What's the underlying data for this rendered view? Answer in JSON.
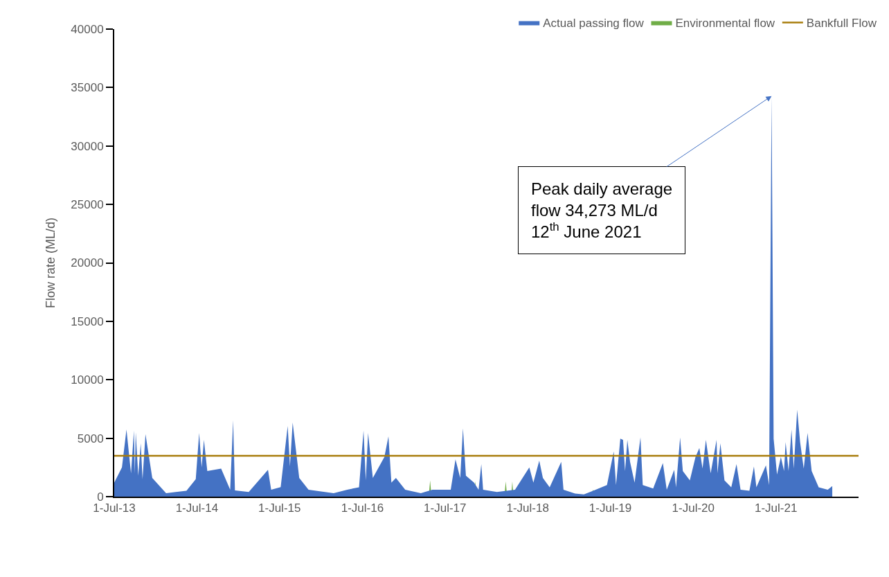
{
  "chart_data": {
    "type": "area",
    "ylabel": "Flow rate (ML/d)",
    "xlim": [
      "2013-07-01",
      "2022-07-01"
    ],
    "xticks": [
      {
        "value": "2013-07-01",
        "label": "1-Jul-13"
      },
      {
        "value": "2014-07-01",
        "label": "1-Jul-14"
      },
      {
        "value": "2015-07-01",
        "label": "1-Jul-15"
      },
      {
        "value": "2016-07-01",
        "label": "1-Jul-16"
      },
      {
        "value": "2017-07-01",
        "label": "1-Jul-17"
      },
      {
        "value": "2018-07-01",
        "label": "1-Jul-18"
      },
      {
        "value": "2019-07-01",
        "label": "1-Jul-19"
      },
      {
        "value": "2020-07-01",
        "label": "1-Jul-20"
      },
      {
        "value": "2021-07-01",
        "label": "1-Jul-21"
      }
    ],
    "ylim": [
      0,
      40000
    ],
    "yticks": [
      0,
      5000,
      10000,
      15000,
      20000,
      25000,
      30000,
      35000,
      40000
    ],
    "legend": "top right",
    "series": [
      {
        "name": "Actual passing flow",
        "color": "#4472c4",
        "x": [
          "2013-07-01",
          "2013-08-04",
          "2013-08-24",
          "2013-09-13",
          "2013-09-26",
          "2013-09-30",
          "2013-10-04",
          "2013-10-15",
          "2013-10-26",
          "2013-11-03",
          "2013-11-16",
          "2013-12-16",
          "2014-02-15",
          "2014-05-16",
          "2014-06-26",
          "2014-07-11",
          "2014-07-22",
          "2014-08-01",
          "2014-08-16",
          "2014-10-16",
          "2014-11-25",
          "2014-12-08",
          "2014-12-16",
          "2015-02-15",
          "2015-05-11",
          "2015-05-25",
          "2015-07-06",
          "2015-08-06",
          "2015-08-16",
          "2015-08-28",
          "2015-09-26",
          "2015-11-06",
          "2016-02-25",
          "2016-04-25",
          "2016-06-16",
          "2016-07-06",
          "2016-07-16",
          "2016-07-26",
          "2016-08-16",
          "2016-10-06",
          "2016-10-24",
          "2016-11-06",
          "2016-11-26",
          "2017-01-06",
          "2017-03-16",
          "2017-05-06",
          "2017-07-26",
          "2017-08-16",
          "2017-09-06",
          "2017-09-18",
          "2017-10-01",
          "2017-11-06",
          "2017-11-26",
          "2017-12-08",
          "2017-12-16",
          "2018-02-15",
          "2018-05-06",
          "2018-07-08",
          "2018-07-26",
          "2018-08-21",
          "2018-09-06",
          "2018-10-06",
          "2018-11-26",
          "2018-12-06",
          "2019-01-26",
          "2019-03-06",
          "2019-04-16",
          "2019-06-16",
          "2019-07-16",
          "2019-07-26",
          "2019-08-14",
          "2019-08-26",
          "2019-09-04",
          "2019-09-14",
          "2019-09-26",
          "2019-10-16",
          "2019-11-11",
          "2019-11-21",
          "2020-01-06",
          "2020-02-18",
          "2020-03-06",
          "2020-04-08",
          "2020-04-16",
          "2020-05-04",
          "2020-05-16",
          "2020-06-16",
          "2020-07-11",
          "2020-07-28",
          "2020-08-11",
          "2020-08-26",
          "2020-09-16",
          "2020-10-12",
          "2020-10-16",
          "2020-10-29",
          "2020-11-16",
          "2020-12-16",
          "2021-01-08",
          "2021-01-26",
          "2021-03-06",
          "2021-03-26",
          "2021-04-06",
          "2021-05-18",
          "2021-06-01",
          "2021-06-12",
          "2021-06-21",
          "2021-07-06",
          "2021-07-23",
          "2021-08-06",
          "2021-08-13",
          "2021-08-26",
          "2021-09-08",
          "2021-09-18",
          "2021-10-03",
          "2021-10-16",
          "2021-11-01",
          "2021-11-18",
          "2021-12-06",
          "2022-01-06",
          "2022-02-15",
          "2022-03-07"
        ],
        "values": [
          1200,
          2500,
          5750,
          2000,
          5650,
          2000,
          5500,
          1800,
          4560,
          1500,
          5350,
          1600,
          300,
          500,
          1500,
          5450,
          2500,
          4860,
          2200,
          2400,
          600,
          6540,
          530,
          400,
          2300,
          600,
          820,
          6040,
          2600,
          6340,
          1600,
          600,
          300,
          600,
          800,
          5650,
          1400,
          5450,
          1600,
          3400,
          5150,
          1200,
          1600,
          600,
          300,
          600,
          600,
          3180,
          1600,
          5850,
          1800,
          1200,
          600,
          2780,
          600,
          400,
          600,
          2500,
          1200,
          3080,
          1600,
          800,
          2980,
          600,
          260,
          200,
          500,
          1000,
          3870,
          1000,
          4960,
          4860,
          2200,
          4860,
          2980,
          1200,
          5060,
          1000,
          700,
          2880,
          600,
          2300,
          800,
          5060,
          2200,
          1400,
          3400,
          4170,
          2400,
          4860,
          2000,
          4860,
          2000,
          4560,
          1400,
          800,
          2780,
          600,
          500,
          2580,
          800,
          2680,
          1000,
          34273,
          4960,
          1900,
          3400,
          2200,
          4660,
          2200,
          5750,
          2400,
          7430,
          4660,
          2400,
          5450,
          2200,
          800,
          600,
          900
        ]
      },
      {
        "name": "Environmental flow",
        "color": "#70ad47",
        "x": [
          "2017-04-20",
          "2017-04-26",
          "2017-05-02",
          "2017-11-05",
          "2017-11-11",
          "2017-11-17",
          "2018-03-20",
          "2018-03-26",
          "2018-04-01",
          "2018-04-19",
          "2018-04-24",
          "2018-04-29",
          "2019-04-06",
          "2019-04-16",
          "2019-04-26"
        ],
        "values": [
          0,
          1400,
          0,
          0,
          1300,
          0,
          0,
          1300,
          0,
          0,
          1300,
          0,
          0,
          600,
          0
        ]
      }
    ],
    "ref_lines": [
      {
        "axis": "y",
        "value": 3500,
        "label": "Bankfull Flow",
        "color": "#a87c0b"
      }
    ],
    "annotations": [
      {
        "text": "Peak daily average\nflow 34,273 ML/d\n12$^{th}$ June 2021",
        "x": "2021-06-12",
        "y": 34273
      }
    ]
  }
}
